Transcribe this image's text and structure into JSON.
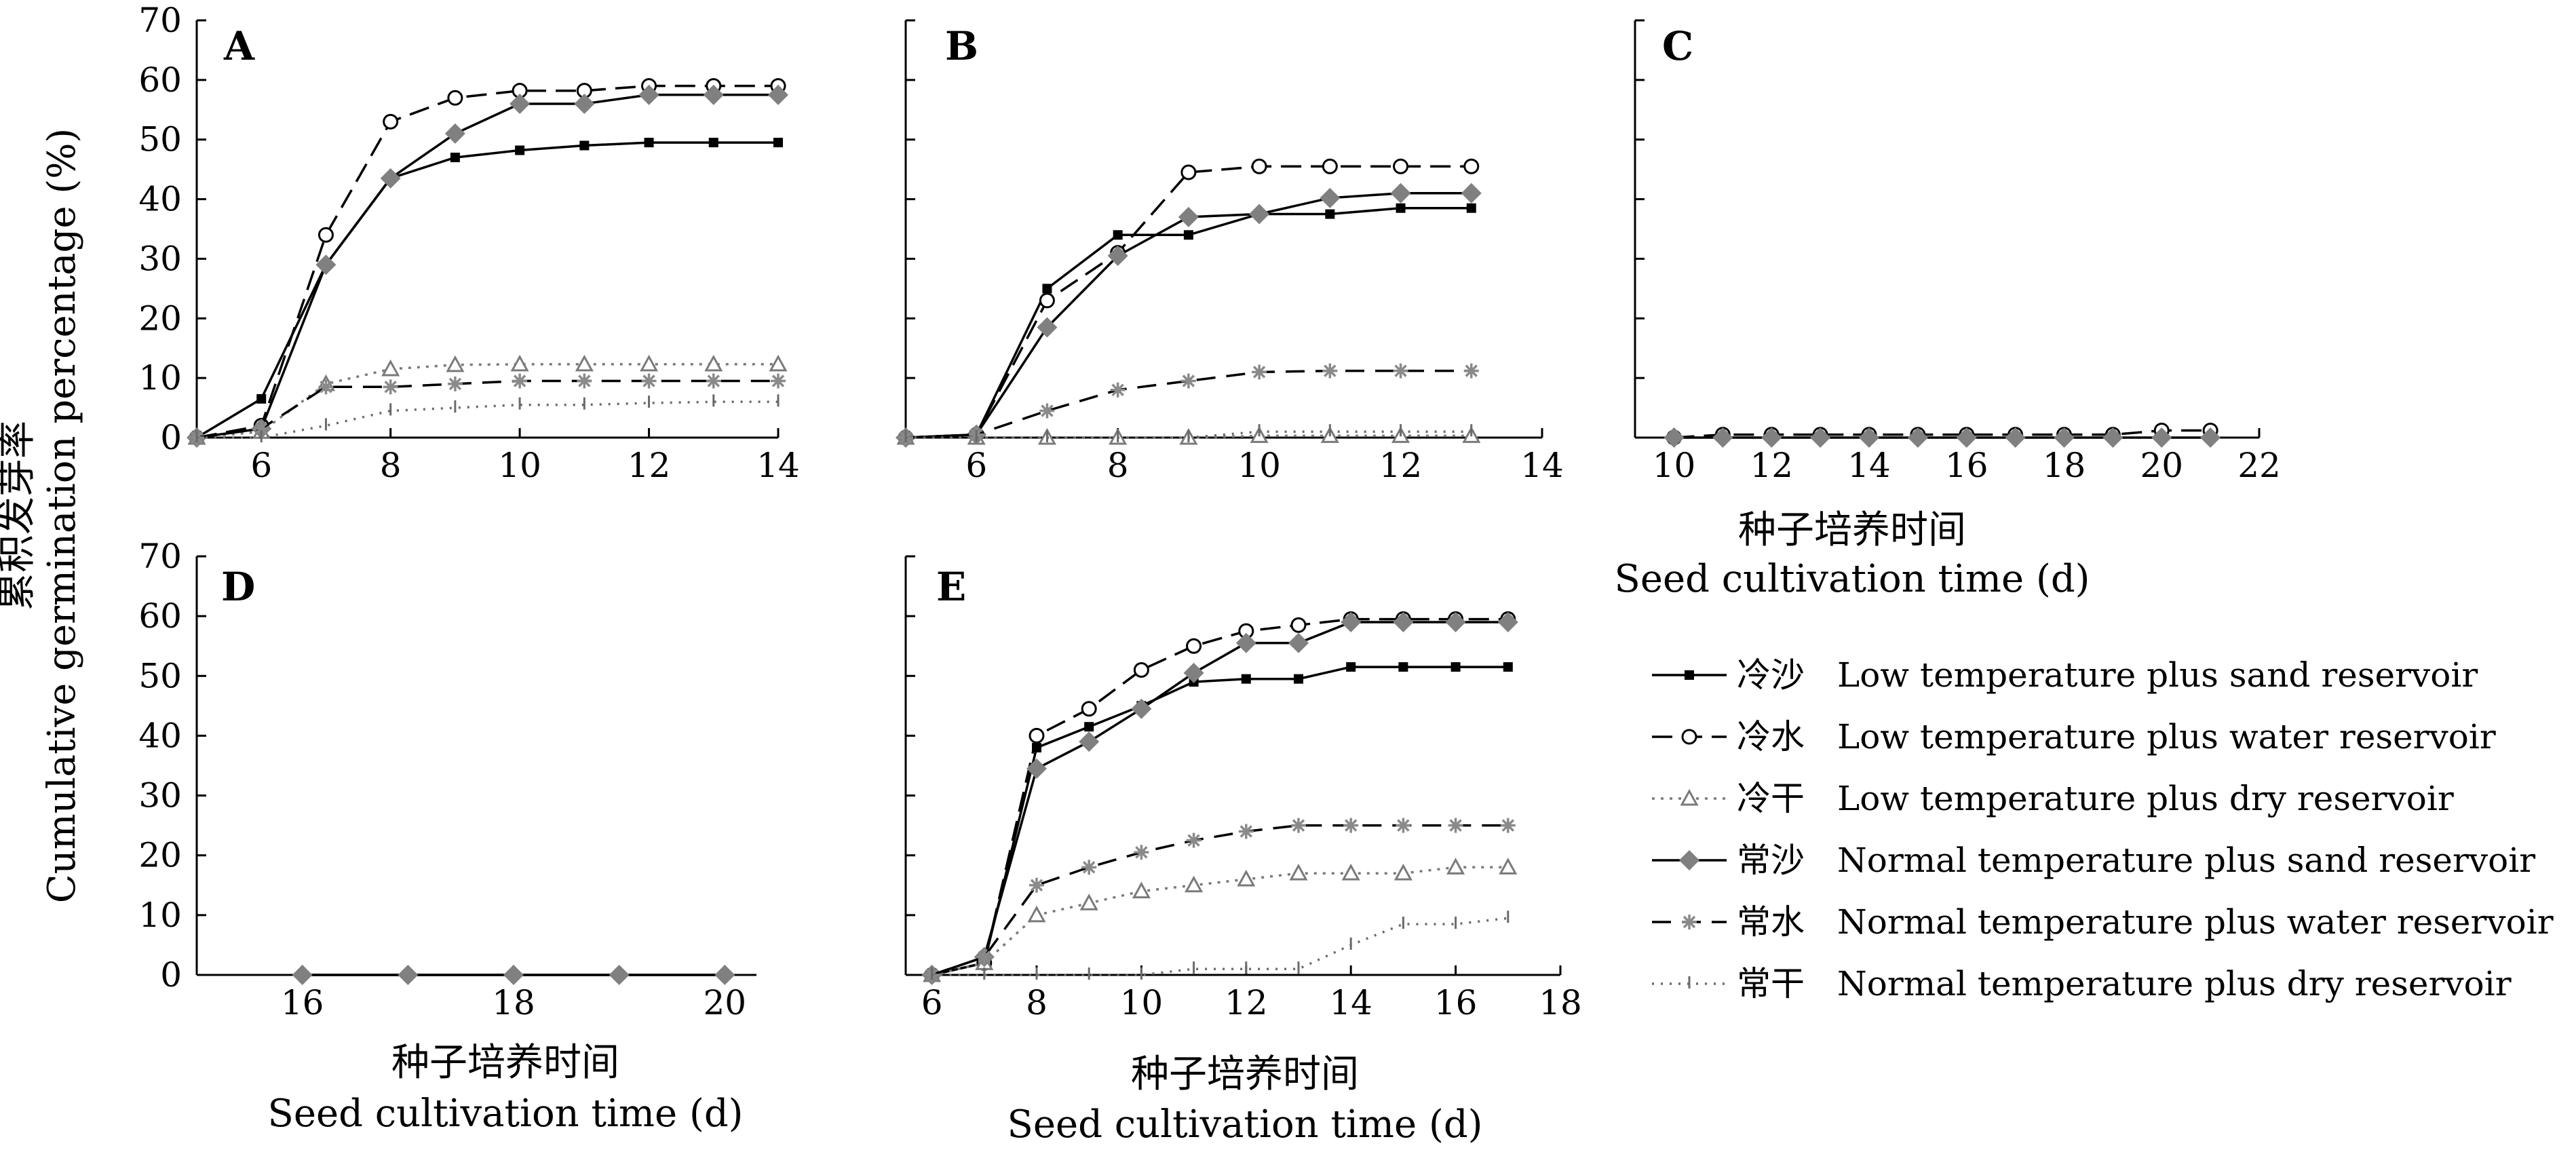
{
  "y_axis_title": [
    "累积发芽率",
    "Cumulative germination percentage (%)"
  ],
  "x_axis_title": [
    "种子培养时间",
    "Seed cultivation time (d)"
  ],
  "legend": [
    {
      "key": "ls",
      "zh": "冷沙",
      "en": "Low temperature plus sand reservoir"
    },
    {
      "key": "lw",
      "zh": "冷水",
      "en": "Low temperature plus water reservoir"
    },
    {
      "key": "ld",
      "zh": "冷干",
      "en": "Low temperature plus dry reservoir"
    },
    {
      "key": "ns",
      "zh": "常沙",
      "en": "Normal temperature plus sand reservoir"
    },
    {
      "key": "nw",
      "zh": "常水",
      "en": "Normal temperature plus water reservoir"
    },
    {
      "key": "nd",
      "zh": "常干",
      "en": "Normal temperature plus dry reservoir"
    }
  ],
  "series_style": {
    "ls": {
      "color": "#000000",
      "dash": "none",
      "marker": "square"
    },
    "lw": {
      "color": "#000000",
      "dash": "30,14",
      "marker": "circle"
    },
    "ld": {
      "color": "#7a7a7a",
      "dash": "4,9",
      "marker": "triangle"
    },
    "ns": {
      "color": "#000000",
      "dash": "none",
      "marker": "diamond",
      "marker_color": "#808080"
    },
    "nw": {
      "color": "#000000",
      "dash": "28,16",
      "marker": "star",
      "marker_color": "#8a8a8a"
    },
    "nd": {
      "color": "#6a6a6a",
      "dash": "3,10",
      "marker": "bar"
    }
  },
  "chart_data": [
    {
      "panel": "A",
      "type": "line",
      "xlim": [
        5,
        14
      ],
      "ylim": [
        0,
        70
      ],
      "xticks": [
        6,
        8,
        10,
        12,
        14
      ],
      "yticks": [
        0,
        10,
        20,
        30,
        40,
        50,
        60,
        70
      ],
      "series": [
        {
          "key": "ls",
          "x": [
            5,
            6,
            7,
            8,
            9,
            10,
            11,
            12,
            13,
            14
          ],
          "y": [
            0,
            6.5,
            29,
            43.5,
            47,
            48.2,
            49,
            49.5,
            49.5,
            49.5
          ]
        },
        {
          "key": "lw",
          "x": [
            5,
            6,
            7,
            8,
            9,
            10,
            11,
            12,
            13,
            14
          ],
          "y": [
            0,
            2,
            34,
            53,
            57,
            58.2,
            58.2,
            59,
            59,
            59
          ]
        },
        {
          "key": "ld",
          "x": [
            5,
            6,
            7,
            8,
            9,
            10,
            11,
            12,
            13,
            14
          ],
          "y": [
            0,
            1,
            9,
            11.5,
            12.2,
            12.3,
            12.3,
            12.3,
            12.3,
            12.3
          ]
        },
        {
          "key": "ns",
          "x": [
            5,
            6,
            7,
            8,
            9,
            10,
            11,
            12,
            13,
            14
          ],
          "y": [
            0,
            1.5,
            29,
            43.5,
            51,
            56,
            56,
            57.5,
            57.5,
            57.5
          ]
        },
        {
          "key": "nw",
          "x": [
            5,
            6,
            7,
            8,
            9,
            10,
            11,
            12,
            13,
            14
          ],
          "y": [
            0,
            1.5,
            8.5,
            8.5,
            9,
            9.5,
            9.5,
            9.5,
            9.5,
            9.5
          ]
        },
        {
          "key": "nd",
          "x": [
            5,
            6,
            7,
            8,
            9,
            10,
            11,
            12,
            13,
            14
          ],
          "y": [
            0,
            0,
            2,
            4.5,
            5,
            5.5,
            5.5,
            5.8,
            6,
            6
          ]
        }
      ]
    },
    {
      "panel": "B",
      "type": "line",
      "xlim": [
        5,
        14
      ],
      "ylim": [
        0,
        70
      ],
      "xticks": [
        6,
        8,
        10,
        12,
        14
      ],
      "yticks": [
        0,
        10,
        20,
        30,
        40,
        50,
        60,
        70
      ],
      "series": [
        {
          "key": "ls",
          "x": [
            5,
            6,
            7,
            8,
            9,
            10,
            11,
            12,
            13
          ],
          "y": [
            0,
            0.5,
            25,
            34,
            34,
            37.5,
            37.5,
            38.5,
            38.5
          ]
        },
        {
          "key": "lw",
          "x": [
            5,
            6,
            7,
            8,
            9,
            10,
            11,
            12,
            13
          ],
          "y": [
            0,
            0.5,
            23,
            31,
            44.5,
            45.5,
            45.5,
            45.5,
            45.5
          ]
        },
        {
          "key": "ld",
          "x": [
            5,
            6,
            7,
            8,
            9,
            10,
            11,
            12,
            13
          ],
          "y": [
            0,
            0,
            0,
            0,
            0,
            0.3,
            0.3,
            0.3,
            0.3
          ]
        },
        {
          "key": "ns",
          "x": [
            5,
            6,
            7,
            8,
            9,
            10,
            11,
            12,
            13
          ],
          "y": [
            0,
            0.5,
            18.5,
            30.5,
            37,
            37.5,
            40.2,
            41,
            41
          ]
        },
        {
          "key": "nw",
          "x": [
            5,
            6,
            7,
            8,
            9,
            10,
            11,
            12,
            13
          ],
          "y": [
            0,
            0.5,
            4.5,
            8,
            9.5,
            11,
            11.2,
            11.2,
            11.2
          ]
        },
        {
          "key": "nd",
          "x": [
            5,
            6,
            7,
            8,
            9,
            10,
            11,
            12,
            13
          ],
          "y": [
            0,
            0,
            0,
            0,
            0,
            1,
            1,
            1,
            1
          ]
        }
      ]
    },
    {
      "panel": "C",
      "type": "line",
      "xlim": [
        9.2,
        22
      ],
      "ylim": [
        0,
        70
      ],
      "xticks": [
        10,
        12,
        14,
        16,
        18,
        20,
        22
      ],
      "yticks": [
        0,
        10,
        20,
        30,
        40,
        50,
        60,
        70
      ],
      "series": [
        {
          "key": "lw",
          "x": [
            10,
            11,
            12,
            13,
            14,
            15,
            16,
            17,
            18,
            19,
            20,
            21
          ],
          "y": [
            0,
            0.5,
            0.5,
            0.5,
            0.5,
            0.5,
            0.5,
            0.5,
            0.5,
            0.5,
            1.2,
            1.2
          ]
        },
        {
          "key": "ns",
          "x": [
            10,
            11,
            12,
            13,
            14,
            15,
            16,
            17,
            18,
            19,
            20,
            21
          ],
          "y": [
            0,
            0,
            0,
            0,
            0,
            0,
            0,
            0,
            0,
            0,
            0,
            0
          ]
        }
      ]
    },
    {
      "panel": "D",
      "type": "line",
      "xlim": [
        15,
        20.3
      ],
      "ylim": [
        0,
        70
      ],
      "xticks": [
        16,
        18,
        20
      ],
      "yticks": [
        0,
        10,
        20,
        30,
        40,
        50,
        60,
        70
      ],
      "series": [
        {
          "key": "ls",
          "x": [
            16,
            17,
            18,
            19,
            20
          ],
          "y": [
            0,
            0,
            0,
            0,
            0
          ]
        },
        {
          "key": "ns",
          "x": [
            16,
            17,
            18,
            19,
            20
          ],
          "y": [
            0,
            0,
            0,
            0,
            0
          ]
        }
      ]
    },
    {
      "panel": "E",
      "type": "line",
      "xlim": [
        5.5,
        18
      ],
      "ylim": [
        0,
        70
      ],
      "xticks": [
        6,
        8,
        10,
        12,
        14,
        16,
        18
      ],
      "yticks": [
        0,
        10,
        20,
        30,
        40,
        50,
        60,
        70
      ],
      "series": [
        {
          "key": "ls",
          "x": [
            6,
            7,
            8,
            9,
            10,
            11,
            12,
            13,
            14,
            15,
            16,
            17
          ],
          "y": [
            0,
            2,
            38,
            41.5,
            45,
            49,
            49.5,
            49.5,
            51.5,
            51.5,
            51.5,
            51.5
          ]
        },
        {
          "key": "lw",
          "x": [
            6,
            7,
            8,
            9,
            10,
            11,
            12,
            13,
            14,
            15,
            16,
            17
          ],
          "y": [
            0,
            2,
            40,
            44.5,
            51,
            55,
            57.5,
            58.5,
            59.5,
            59.5,
            59.5,
            59.5
          ]
        },
        {
          "key": "ld",
          "x": [
            6,
            7,
            8,
            9,
            10,
            11,
            12,
            13,
            14,
            15,
            16,
            17
          ],
          "y": [
            0,
            2,
            10,
            12,
            14,
            15,
            16,
            17,
            17,
            17,
            18,
            18
          ]
        },
        {
          "key": "ns",
          "x": [
            6,
            7,
            8,
            9,
            10,
            11,
            12,
            13,
            14,
            15,
            16,
            17
          ],
          "y": [
            0,
            3,
            34.5,
            39,
            44.5,
            50.5,
            55.5,
            55.5,
            59,
            59,
            59,
            59
          ]
        },
        {
          "key": "nw",
          "x": [
            6,
            7,
            8,
            9,
            10,
            11,
            12,
            13,
            14,
            15,
            16,
            17
          ],
          "y": [
            0,
            3,
            15,
            18,
            20.5,
            22.5,
            24,
            25,
            25,
            25,
            25,
            25
          ]
        },
        {
          "key": "nd",
          "x": [
            6,
            7,
            8,
            9,
            10,
            11,
            12,
            13,
            14,
            15,
            16,
            17
          ],
          "y": [
            0,
            0,
            0,
            0,
            0,
            1,
            1,
            1,
            5,
            8.5,
            8.5,
            9.5
          ]
        }
      ]
    }
  ]
}
